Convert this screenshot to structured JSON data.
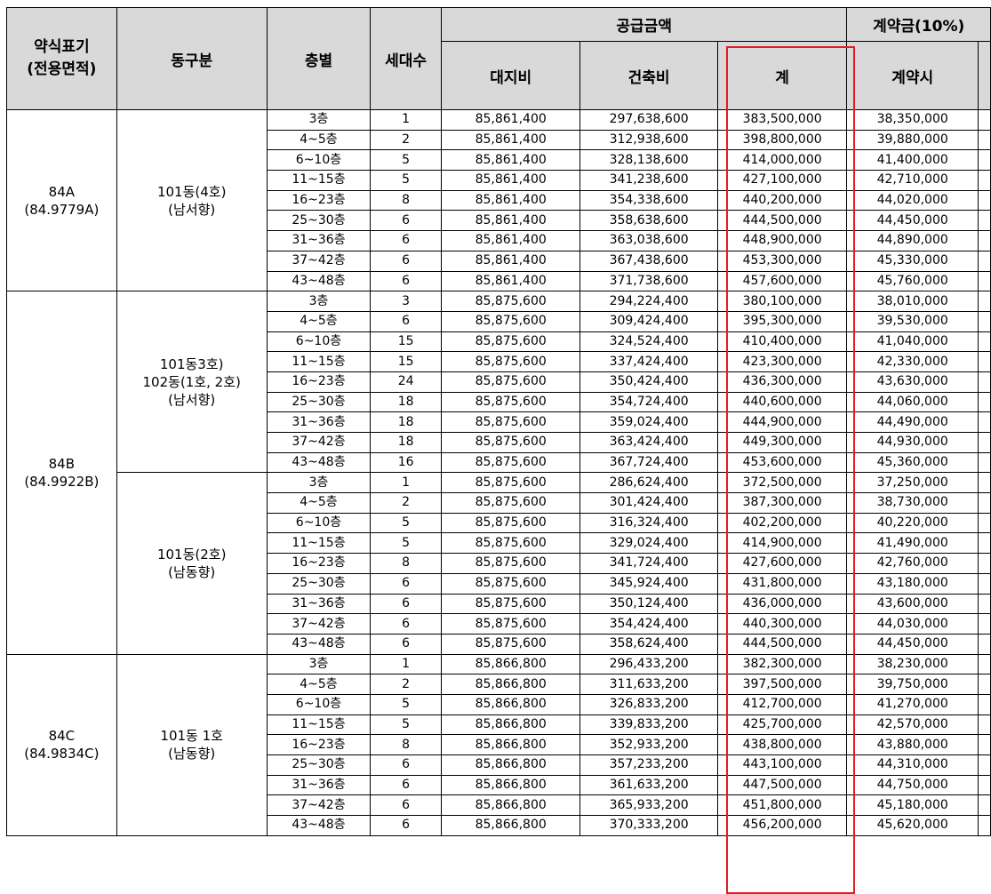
{
  "headers": {
    "type_label": "약식표기",
    "type_label2": "(전용면적)",
    "dong": "동구분",
    "floor": "층별",
    "units": "세대수",
    "supply_group": "공급금액",
    "land": "대지비",
    "building": "건축비",
    "total": "계",
    "deposit_group": "계약금(10%)",
    "deposit_at_contract": "계약시"
  },
  "types": [
    {
      "name": "84A",
      "area": "(84.9779A)"
    },
    {
      "name": "84B",
      "area": "(84.9922B)"
    },
    {
      "name": "84C",
      "area": "(84.9834C)"
    }
  ],
  "groups": [
    {
      "lines": [
        "101동(4호)",
        "(남서향)"
      ]
    },
    {
      "lines": [
        "101동3호)",
        "102동(1호, 2호)",
        "(남서향)"
      ]
    },
    {
      "lines": [
        "101동(2호)",
        "(남동향)"
      ]
    },
    {
      "lines": [
        "101동 1호",
        "(남동향)"
      ]
    }
  ],
  "rows": [
    [
      "3층",
      "1",
      "85,861,400",
      "297,638,600",
      "383,500,000",
      "38,350,000"
    ],
    [
      "4~5층",
      "2",
      "85,861,400",
      "312,938,600",
      "398,800,000",
      "39,880,000"
    ],
    [
      "6~10층",
      "5",
      "85,861,400",
      "328,138,600",
      "414,000,000",
      "41,400,000"
    ],
    [
      "11~15층",
      "5",
      "85,861,400",
      "341,238,600",
      "427,100,000",
      "42,710,000"
    ],
    [
      "16~23층",
      "8",
      "85,861,400",
      "354,338,600",
      "440,200,000",
      "44,020,000"
    ],
    [
      "25~30층",
      "6",
      "85,861,400",
      "358,638,600",
      "444,500,000",
      "44,450,000"
    ],
    [
      "31~36층",
      "6",
      "85,861,400",
      "363,038,600",
      "448,900,000",
      "44,890,000"
    ],
    [
      "37~42층",
      "6",
      "85,861,400",
      "367,438,600",
      "453,300,000",
      "45,330,000"
    ],
    [
      "43~48층",
      "6",
      "85,861,400",
      "371,738,600",
      "457,600,000",
      "45,760,000"
    ],
    [
      "3층",
      "3",
      "85,875,600",
      "294,224,400",
      "380,100,000",
      "38,010,000"
    ],
    [
      "4~5층",
      "6",
      "85,875,600",
      "309,424,400",
      "395,300,000",
      "39,530,000"
    ],
    [
      "6~10층",
      "15",
      "85,875,600",
      "324,524,400",
      "410,400,000",
      "41,040,000"
    ],
    [
      "11~15층",
      "15",
      "85,875,600",
      "337,424,400",
      "423,300,000",
      "42,330,000"
    ],
    [
      "16~23층",
      "24",
      "85,875,600",
      "350,424,400",
      "436,300,000",
      "43,630,000"
    ],
    [
      "25~30층",
      "18",
      "85,875,600",
      "354,724,400",
      "440,600,000",
      "44,060,000"
    ],
    [
      "31~36층",
      "18",
      "85,875,600",
      "359,024,400",
      "444,900,000",
      "44,490,000"
    ],
    [
      "37~42층",
      "18",
      "85,875,600",
      "363,424,400",
      "449,300,000",
      "44,930,000"
    ],
    [
      "43~48층",
      "16",
      "85,875,600",
      "367,724,400",
      "453,600,000",
      "45,360,000"
    ],
    [
      "3층",
      "1",
      "85,875,600",
      "286,624,400",
      "372,500,000",
      "37,250,000"
    ],
    [
      "4~5층",
      "2",
      "85,875,600",
      "301,424,400",
      "387,300,000",
      "38,730,000"
    ],
    [
      "6~10층",
      "5",
      "85,875,600",
      "316,324,400",
      "402,200,000",
      "40,220,000"
    ],
    [
      "11~15층",
      "5",
      "85,875,600",
      "329,024,400",
      "414,900,000",
      "41,490,000"
    ],
    [
      "16~23층",
      "8",
      "85,875,600",
      "341,724,400",
      "427,600,000",
      "42,760,000"
    ],
    [
      "25~30층",
      "6",
      "85,875,600",
      "345,924,400",
      "431,800,000",
      "43,180,000"
    ],
    [
      "31~36층",
      "6",
      "85,875,600",
      "350,124,400",
      "436,000,000",
      "43,600,000"
    ],
    [
      "37~42층",
      "6",
      "85,875,600",
      "354,424,400",
      "440,300,000",
      "44,030,000"
    ],
    [
      "43~48층",
      "6",
      "85,875,600",
      "358,624,400",
      "444,500,000",
      "44,450,000"
    ],
    [
      "3층",
      "1",
      "85,866,800",
      "296,433,200",
      "382,300,000",
      "38,230,000"
    ],
    [
      "4~5층",
      "2",
      "85,866,800",
      "311,633,200",
      "397,500,000",
      "39,750,000"
    ],
    [
      "6~10층",
      "5",
      "85,866,800",
      "326,833,200",
      "412,700,000",
      "41,270,000"
    ],
    [
      "11~15층",
      "5",
      "85,866,800",
      "339,833,200",
      "425,700,000",
      "42,570,000"
    ],
    [
      "16~23층",
      "8",
      "85,866,800",
      "352,933,200",
      "438,800,000",
      "43,880,000"
    ],
    [
      "25~30층",
      "6",
      "85,866,800",
      "357,233,200",
      "443,100,000",
      "44,310,000"
    ],
    [
      "31~36층",
      "6",
      "85,866,800",
      "361,633,200",
      "447,500,000",
      "44,750,000"
    ],
    [
      "37~42층",
      "6",
      "85,866,800",
      "365,933,200",
      "451,800,000",
      "45,180,000"
    ],
    [
      "43~48층",
      "6",
      "85,866,800",
      "370,333,200",
      "456,200,000",
      "45,620,000"
    ]
  ],
  "colors": {
    "header_bg": "#d9d9d9",
    "highlight": "#e31b23"
  }
}
